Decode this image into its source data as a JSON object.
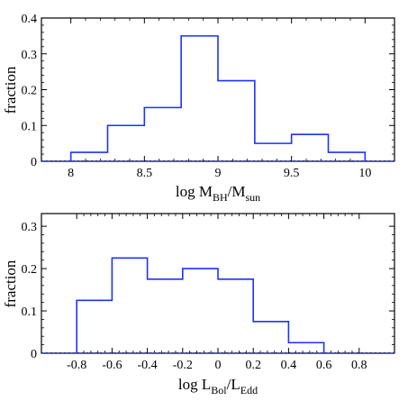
{
  "chart_data": [
    {
      "type": "histogram",
      "xlabel": "log M_BH/M_sun",
      "xlabel_main": "log M",
      "xlabel_sub1": "BH",
      "xlabel_mid": "/M",
      "xlabel_sub2": "sun",
      "ylabel": "fraction",
      "xlim": [
        7.8,
        10.2
      ],
      "ylim": [
        0,
        0.4
      ],
      "xticks": [
        8,
        8.5,
        9,
        9.5,
        10
      ],
      "xtick_labels": [
        "8",
        "8.5",
        "9",
        "9.5",
        "10"
      ],
      "yticks": [
        0,
        0.1,
        0.2,
        0.3,
        0.4
      ],
      "ytick_labels": [
        "0",
        "0.1",
        "0.2",
        "0.3",
        "0.4"
      ],
      "bin_edges": [
        8.0,
        8.25,
        8.5,
        8.75,
        9.0,
        9.25,
        9.5,
        9.75,
        10.0
      ],
      "values": [
        0.025,
        0.1,
        0.15,
        0.35,
        0.225,
        0.05,
        0.075,
        0.025
      ],
      "grid": false,
      "color": "#1a33ff"
    },
    {
      "type": "histogram",
      "xlabel": "log L_Bol/L_Edd",
      "xlabel_main": "log L",
      "xlabel_sub1": "Bol",
      "xlabel_mid": "/L",
      "xlabel_sub2": "Edd",
      "ylabel": "fraction",
      "xlim": [
        -1.0,
        1.0
      ],
      "ylim": [
        0,
        0.33
      ],
      "xticks": [
        -0.8,
        -0.6,
        -0.4,
        -0.2,
        0,
        0.2,
        0.4,
        0.6,
        0.8
      ],
      "xtick_labels": [
        "-0.8",
        "-0.6",
        "-0.4",
        "-0.2",
        "0",
        "0.2",
        "0.4",
        "0.6",
        "0.8"
      ],
      "yticks": [
        0,
        0.1,
        0.2,
        0.3
      ],
      "ytick_labels": [
        "0",
        "0.1",
        "0.2",
        "0.3"
      ],
      "bin_edges": [
        -0.8,
        -0.6,
        -0.4,
        -0.2,
        0.0,
        0.2,
        0.4,
        0.6
      ],
      "values": [
        0.125,
        0.225,
        0.175,
        0.2,
        0.175,
        0.075,
        0.025
      ],
      "grid": false,
      "color": "#1a33ff"
    }
  ]
}
